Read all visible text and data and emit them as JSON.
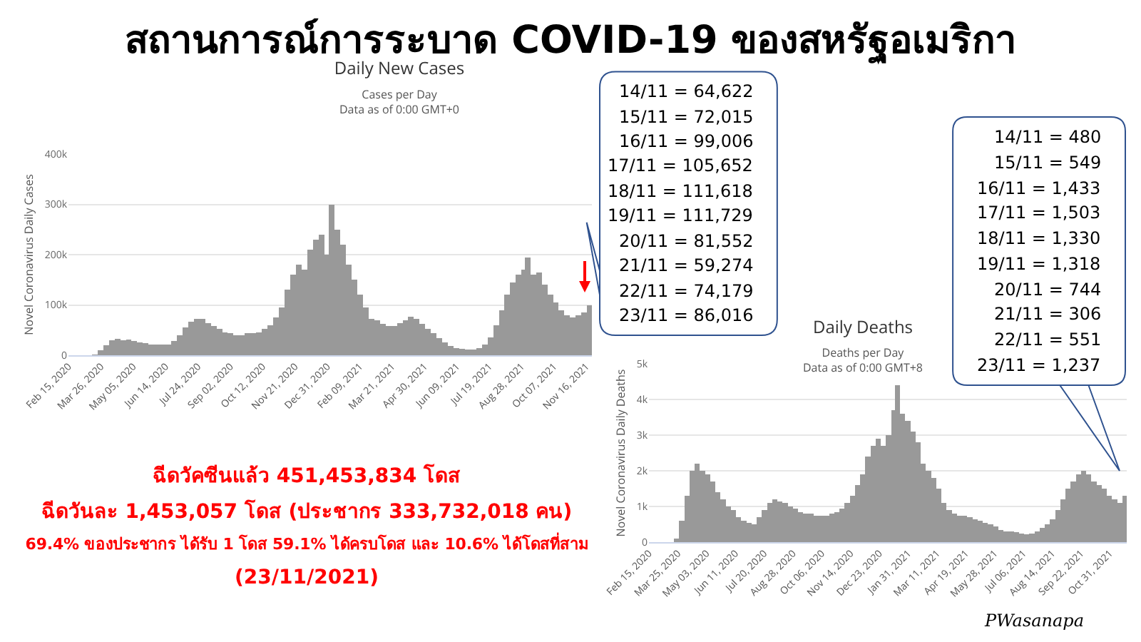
{
  "chart_data": [
    {
      "type": "other",
      "title": "สถานการณ์การระบาด COVID-19 ของสหรัฐอเมริกา",
      "annotations": [
        "ฉีดวัคซีนแล้ว 451,453,834 โดส",
        "ฉีดวันละ 1,453,057 โดส (ประชากร 333,732,018 คน)",
        "69.4% ของประชากร ได้รับ 1 โดส 59.1% ได้ครบโดส และ 10.6% ได้โดสที่สาม",
        "(23/11/2021)",
        "PWasanapa"
      ]
    },
    {
      "type": "bar",
      "title": "Daily New Cases",
      "subtitle": "Cases per Day\nData as of 0:00 GMT+0",
      "ylabel": "Novel Coronavirus Daily Cases",
      "x": [
        "2020-02-15",
        "2020-03-01",
        "2020-03-15",
        "2020-03-22",
        "2020-03-29",
        "2020-04-05",
        "2020-04-12",
        "2020-04-19",
        "2020-04-26",
        "2020-05-03",
        "2020-05-10",
        "2020-05-17",
        "2020-05-24",
        "2020-05-31",
        "2020-06-07",
        "2020-06-14",
        "2020-06-21",
        "2020-06-28",
        "2020-07-05",
        "2020-07-12",
        "2020-07-19",
        "2020-07-26",
        "2020-08-02",
        "2020-08-09",
        "2020-08-16",
        "2020-08-23",
        "2020-08-30",
        "2020-09-06",
        "2020-09-13",
        "2020-09-20",
        "2020-09-27",
        "2020-10-04",
        "2020-10-11",
        "2020-10-18",
        "2020-10-25",
        "2020-11-01",
        "2020-11-08",
        "2020-11-15",
        "2020-11-22",
        "2020-11-29",
        "2020-12-06",
        "2020-12-13",
        "2020-12-20",
        "2020-12-27",
        "2021-01-02",
        "2021-01-09",
        "2021-01-16",
        "2021-01-23",
        "2021-01-30",
        "2021-02-06",
        "2021-02-13",
        "2021-02-20",
        "2021-02-27",
        "2021-03-06",
        "2021-03-13",
        "2021-03-20",
        "2021-03-27",
        "2021-04-03",
        "2021-04-10",
        "2021-04-17",
        "2021-04-24",
        "2021-05-01",
        "2021-05-08",
        "2021-05-15",
        "2021-05-22",
        "2021-05-29",
        "2021-06-05",
        "2021-06-12",
        "2021-06-19",
        "2021-06-26",
        "2021-07-03",
        "2021-07-10",
        "2021-07-17",
        "2021-07-24",
        "2021-07-31",
        "2021-08-07",
        "2021-08-14",
        "2021-08-21",
        "2021-08-28",
        "2021-09-01",
        "2021-09-08",
        "2021-09-15",
        "2021-09-22",
        "2021-09-29",
        "2021-10-06",
        "2021-10-13",
        "2021-10-20",
        "2021-10-27",
        "2021-11-03",
        "2021-11-10",
        "2021-11-17"
      ],
      "series": [
        {
          "color": "#999999",
          "values": [
            0,
            0,
            1000,
            10000,
            20000,
            30000,
            32000,
            30000,
            31000,
            29000,
            26000,
            24000,
            22000,
            22000,
            22000,
            22000,
            28000,
            40000,
            55000,
            66000,
            72000,
            72000,
            64000,
            58000,
            52000,
            46000,
            44000,
            40000,
            40000,
            44000,
            44000,
            46000,
            52000,
            60000,
            75000,
            95000,
            130000,
            160000,
            180000,
            170000,
            210000,
            230000,
            240000,
            200000,
            300000,
            250000,
            220000,
            180000,
            150000,
            120000,
            95000,
            72000,
            70000,
            62000,
            58000,
            58000,
            64000,
            70000,
            76000,
            72000,
            62000,
            52000,
            44000,
            34000,
            26000,
            18000,
            14000,
            13000,
            12000,
            12000,
            14000,
            22000,
            35000,
            60000,
            90000,
            120000,
            145000,
            160000,
            170000,
            195000,
            160000,
            165000,
            140000,
            120000,
            105000,
            90000,
            80000,
            75000,
            80000,
            85000,
            100000
          ]
        }
      ],
      "xlim": [
        "2020-02-15",
        "2021-11-23"
      ],
      "xticks": [
        {
          "value": "2020-02-15",
          "label": "Feb 15, 2020"
        },
        {
          "value": "2020-03-26",
          "label": "Mar 26, 2020"
        },
        {
          "value": "2020-05-05",
          "label": "May 05, 2020"
        },
        {
          "value": "2020-06-14",
          "label": "Jun 14, 2020"
        },
        {
          "value": "2020-07-24",
          "label": "Jul 24, 2020"
        },
        {
          "value": "2020-09-02",
          "label": "Sep 02, 2020"
        },
        {
          "value": "2020-10-12",
          "label": "Oct 12, 2020"
        },
        {
          "value": "2020-11-21",
          "label": "Nov 21, 2020"
        },
        {
          "value": "2020-12-31",
          "label": "Dec 31, 2020"
        },
        {
          "value": "2021-02-09",
          "label": "Feb 09, 2021"
        },
        {
          "value": "2021-03-21",
          "label": "Mar 21, 2021"
        },
        {
          "value": "2021-04-30",
          "label": "Apr 30, 2021"
        },
        {
          "value": "2021-06-09",
          "label": "Jun 09, 2021"
        },
        {
          "value": "2021-07-19",
          "label": "Jul 19, 2021"
        },
        {
          "value": "2021-08-28",
          "label": "Aug 28, 2021"
        },
        {
          "value": "2021-10-07",
          "label": "Oct 07, 2021"
        },
        {
          "value": "2021-11-16",
          "label": "Nov 16, 2021"
        }
      ],
      "ylim": [
        0,
        400000
      ],
      "yticks": [
        0,
        {
          "value": 100000,
          "label": "100k"
        },
        {
          "value": 200000,
          "label": "200k"
        },
        {
          "value": 300000,
          "label": "300k"
        },
        {
          "value": 400000,
          "label": "400k"
        }
      ],
      "grid": "y",
      "annotations": [
        "14/11 = 64,622",
        "15/11 = 72,015",
        "16/11 = 99,006",
        "17/11 = 105,652",
        "18/11 = 111,618",
        "19/11 = 111,729",
        "20/11 = 81,552",
        "21/11 = 59,274",
        "22/11 = 74,179",
        "23/11 = 86,016"
      ]
    },
    {
      "type": "bar",
      "title": "Daily Deaths",
      "subtitle": "Deaths per Day\nData as of 0:00 GMT+8",
      "ylabel": "Novel Coronavirus Daily Deaths",
      "x": [
        "2020-02-15",
        "2020-03-01",
        "2020-03-13",
        "2020-03-20",
        "2020-03-27",
        "2020-04-03",
        "2020-04-10",
        "2020-04-17",
        "2020-04-24",
        "2020-05-01",
        "2020-05-08",
        "2020-05-15",
        "2020-05-22",
        "2020-05-29",
        "2020-06-05",
        "2020-06-12",
        "2020-06-19",
        "2020-06-26",
        "2020-07-03",
        "2020-07-10",
        "2020-07-17",
        "2020-07-24",
        "2020-07-31",
        "2020-08-07",
        "2020-08-14",
        "2020-08-21",
        "2020-08-28",
        "2020-09-04",
        "2020-09-11",
        "2020-09-18",
        "2020-09-25",
        "2020-10-02",
        "2020-10-09",
        "2020-10-16",
        "2020-10-23",
        "2020-10-30",
        "2020-11-06",
        "2020-11-13",
        "2020-11-20",
        "2020-11-27",
        "2020-12-04",
        "2020-12-11",
        "2020-12-18",
        "2020-12-25",
        "2021-01-01",
        "2021-01-08",
        "2021-01-13",
        "2021-01-20",
        "2021-01-27",
        "2021-02-03",
        "2021-02-10",
        "2021-02-17",
        "2021-02-24",
        "2021-03-03",
        "2021-03-10",
        "2021-03-17",
        "2021-03-24",
        "2021-03-31",
        "2021-04-07",
        "2021-04-14",
        "2021-04-21",
        "2021-04-28",
        "2021-05-05",
        "2021-05-12",
        "2021-05-19",
        "2021-05-26",
        "2021-06-02",
        "2021-06-09",
        "2021-06-16",
        "2021-06-23",
        "2021-06-30",
        "2021-07-07",
        "2021-07-14",
        "2021-07-21",
        "2021-07-28",
        "2021-08-04",
        "2021-08-11",
        "2021-08-18",
        "2021-08-25",
        "2021-09-01",
        "2021-09-08",
        "2021-09-15",
        "2021-09-22",
        "2021-09-29",
        "2021-10-06",
        "2021-10-13",
        "2021-10-20",
        "2021-10-27",
        "2021-11-03",
        "2021-11-10",
        "2021-11-17"
      ],
      "series": [
        {
          "color": "#999999",
          "values": [
            0,
            0,
            null,
            100,
            600,
            1300,
            2000,
            2200,
            2000,
            1900,
            1700,
            1400,
            1200,
            1000,
            900,
            700,
            600,
            550,
            500,
            700,
            900,
            1100,
            1200,
            1150,
            1100,
            1000,
            950,
            850,
            800,
            800,
            750,
            750,
            750,
            800,
            850,
            950,
            1100,
            1300,
            1600,
            1900,
            2400,
            2700,
            2900,
            2700,
            3000,
            3700,
            4400,
            3600,
            3400,
            3100,
            2800,
            2200,
            2000,
            1800,
            1500,
            1100,
            900,
            800,
            750,
            750,
            700,
            650,
            600,
            550,
            500,
            450,
            350,
            300,
            300,
            280,
            250,
            220,
            250,
            300,
            400,
            500,
            650,
            900,
            1200,
            1500,
            1700,
            1900,
            2000,
            1900,
            1700,
            1600,
            1500,
            1300,
            1200,
            1100,
            1300
          ]
        }
      ],
      "xlim": [
        "2020-02-15",
        "2021-11-23"
      ],
      "xticks": [
        {
          "value": "2020-02-15",
          "label": "Feb 15, 2020"
        },
        {
          "value": "2020-03-25",
          "label": "Mar 25, 2020"
        },
        {
          "value": "2020-05-03",
          "label": "May 03, 2020"
        },
        {
          "value": "2020-06-11",
          "label": "Jun 11, 2020"
        },
        {
          "value": "2020-07-20",
          "label": "Jul 20, 2020"
        },
        {
          "value": "2020-08-28",
          "label": "Aug 28, 2020"
        },
        {
          "value": "2020-10-06",
          "label": "Oct 06, 2020"
        },
        {
          "value": "2020-11-14",
          "label": "Nov 14, 2020"
        },
        {
          "value": "2020-12-23",
          "label": "Dec 23, 2020"
        },
        {
          "value": "2021-01-31",
          "label": "Jan 31, 2021"
        },
        {
          "value": "2021-03-11",
          "label": "Mar 11, 2021"
        },
        {
          "value": "2021-04-19",
          "label": "Apr 19, 2021"
        },
        {
          "value": "2021-05-28",
          "label": "May 28, 2021"
        },
        {
          "value": "2021-07-06",
          "label": "Jul 06, 2021"
        },
        {
          "value": "2021-08-14",
          "label": "Aug 14, 2021"
        },
        {
          "value": "2021-09-22",
          "label": "Sep 22, 2021"
        },
        {
          "value": "2021-10-31",
          "label": "Oct 31, 2021"
        }
      ],
      "ylim": [
        0,
        5000
      ],
      "yticks": [
        0,
        {
          "value": 1000,
          "label": "1k"
        },
        {
          "value": 2000,
          "label": "2k"
        },
        {
          "value": 3000,
          "label": "3k"
        },
        {
          "value": 4000,
          "label": "4k"
        },
        {
          "value": 5000,
          "label": "5k"
        }
      ],
      "grid": "y",
      "annotations": [
        "14/11 = 480",
        "15/11 = 549",
        "16/11 = 1,433",
        "17/11 = 1,503",
        "18/11 = 1,330",
        "19/11 = 1,318",
        "20/11 = 744",
        "21/11 = 306",
        "22/11 = 551",
        "23/11 = 1,237"
      ]
    }
  ]
}
